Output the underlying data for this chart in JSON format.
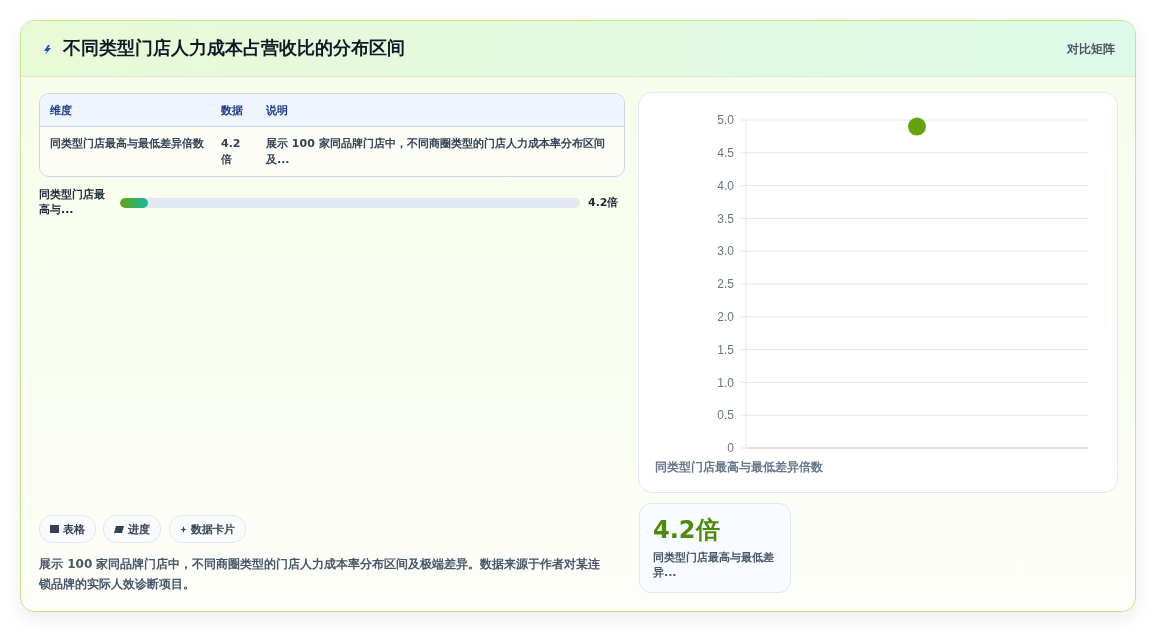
{
  "chart_data": [
    {
      "type": "other",
      "title": "不同类型门店人力成本占营收比的分布区间",
      "annotations": [
        "对比矩阵",
        "维度",
        "数据",
        "说明",
        "同类型门店最高与最低差异倍数",
        "4.2倍",
        "展示 100 家同品牌门店中，不同商圈类型的门店人力成本率分布区间及...",
        "同类型门店最高与...",
        "4.2倍",
        "表格",
        "进度",
        "数据卡片",
        "展示 100 家同品牌门店中，不同商圈类型的门店人力成本率分布区间及极端差异。数据来源于作者对某连锁品牌的实际人效诊断项目。",
        "4.2倍",
        "同类型门店最高与最低差异..."
      ]
    },
    {
      "type": "scatter",
      "xlabel": "同类型门店最高与最低差异倍数",
      "categories": [
        null
      ],
      "values": [
        4.9
      ],
      "color": "#65a30d",
      "ylim": [
        0,
        5
      ],
      "yticks": [
        0,
        {
          "value": 0.5,
          "label": "0.5"
        },
        {
          "value": 1,
          "label": "1.0"
        },
        {
          "value": 1.5,
          "label": "1.5"
        },
        {
          "value": 2,
          "label": "2.0"
        },
        {
          "value": 2.5,
          "label": "2.5"
        },
        {
          "value": 3,
          "label": "3.0"
        },
        {
          "value": 3.5,
          "label": "3.5"
        },
        {
          "value": 4,
          "label": "4.0"
        },
        {
          "value": 4.5,
          "label": "4.5"
        },
        {
          "value": 5,
          "label": "5.0"
        }
      ],
      "grid": "y",
      "marker": "circle"
    }
  ]
}
